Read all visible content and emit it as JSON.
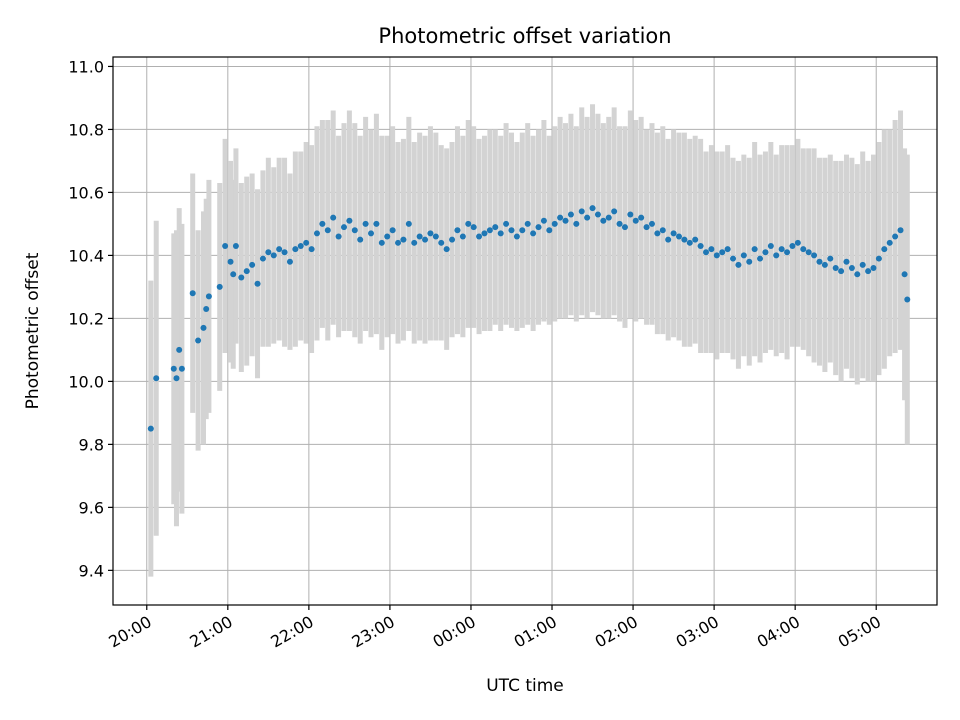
{
  "chart_data": {
    "type": "scatter",
    "title": "Photometric offset variation",
    "xlabel": "UTC time",
    "ylabel": "Photometric offset",
    "grid": true,
    "xlim": [
      "19:35",
      "05:45"
    ],
    "ylim": [
      9.29,
      11.03
    ],
    "x_ticks": [
      "20:00",
      "21:00",
      "22:00",
      "23:00",
      "00:00",
      "01:00",
      "02:00",
      "03:00",
      "04:00",
      "05:00"
    ],
    "y_ticks": [
      "9.4",
      "9.6",
      "9.8",
      "10.0",
      "10.2",
      "10.4",
      "10.6",
      "10.8",
      "11.0"
    ],
    "colors": {
      "points": "#1f77b4",
      "error_bars": "#d3d3d3"
    },
    "series": [
      {
        "values_note": "",
        "x": [
          "20:03",
          "20:07",
          "20:20",
          "20:22",
          "20:24",
          "20:26",
          "20:34",
          "20:38",
          "20:42",
          "20:44",
          "20:46",
          "20:54",
          "20:58",
          "21:02",
          "21:04",
          "21:06",
          "21:10",
          "21:14",
          "21:18",
          "21:22",
          "21:26",
          "21:30",
          "21:34",
          "21:38",
          "21:42",
          "21:46",
          "21:50",
          "21:54",
          "21:58",
          "22:02",
          "22:06",
          "22:10",
          "22:14",
          "22:18",
          "22:22",
          "22:26",
          "22:30",
          "22:34",
          "22:38",
          "22:42",
          "22:46",
          "22:50",
          "22:54",
          "22:58",
          "23:02",
          "23:06",
          "23:10",
          "23:14",
          "23:18",
          "23:22",
          "23:26",
          "23:30",
          "23:34",
          "23:38",
          "23:42",
          "23:46",
          "23:50",
          "23:54",
          "23:58",
          "00:02",
          "00:06",
          "00:10",
          "00:14",
          "00:18",
          "00:22",
          "00:26",
          "00:30",
          "00:34",
          "00:38",
          "00:42",
          "00:46",
          "00:50",
          "00:54",
          "00:58",
          "01:02",
          "01:06",
          "01:10",
          "01:14",
          "01:18",
          "01:22",
          "01:26",
          "01:30",
          "01:34",
          "01:38",
          "01:42",
          "01:46",
          "01:50",
          "01:54",
          "01:58",
          "02:02",
          "02:06",
          "02:10",
          "02:14",
          "02:18",
          "02:22",
          "02:26",
          "02:30",
          "02:34",
          "02:38",
          "02:42",
          "02:46",
          "02:50",
          "02:54",
          "02:58",
          "03:02",
          "03:06",
          "03:10",
          "03:14",
          "03:18",
          "03:22",
          "03:26",
          "03:30",
          "03:34",
          "03:38",
          "03:42",
          "03:46",
          "03:50",
          "03:54",
          "03:58",
          "04:02",
          "04:06",
          "04:10",
          "04:14",
          "04:18",
          "04:22",
          "04:26",
          "04:30",
          "04:34",
          "04:38",
          "04:42",
          "04:46",
          "04:50",
          "04:54",
          "04:58",
          "05:02",
          "05:06",
          "05:10",
          "05:14",
          "05:18",
          "05:21",
          "05:23"
        ],
        "y": [
          9.85,
          10.01,
          10.04,
          10.01,
          10.1,
          10.04,
          10.28,
          10.13,
          10.17,
          10.23,
          10.27,
          10.3,
          10.43,
          10.38,
          10.34,
          10.43,
          10.33,
          10.35,
          10.37,
          10.31,
          10.39,
          10.41,
          10.4,
          10.42,
          10.41,
          10.38,
          10.42,
          10.43,
          10.44,
          10.42,
          10.47,
          10.5,
          10.48,
          10.52,
          10.46,
          10.49,
          10.51,
          10.48,
          10.45,
          10.5,
          10.47,
          10.5,
          10.44,
          10.46,
          10.48,
          10.44,
          10.45,
          10.5,
          10.44,
          10.46,
          10.45,
          10.47,
          10.46,
          10.44,
          10.42,
          10.45,
          10.48,
          10.46,
          10.5,
          10.49,
          10.46,
          10.47,
          10.48,
          10.49,
          10.47,
          10.5,
          10.48,
          10.46,
          10.48,
          10.5,
          10.47,
          10.49,
          10.51,
          10.48,
          10.5,
          10.52,
          10.51,
          10.53,
          10.5,
          10.54,
          10.52,
          10.55,
          10.53,
          10.51,
          10.52,
          10.54,
          10.5,
          10.49,
          10.53,
          10.51,
          10.52,
          10.49,
          10.5,
          10.47,
          10.48,
          10.45,
          10.47,
          10.46,
          10.45,
          10.44,
          10.45,
          10.43,
          10.41,
          10.42,
          10.4,
          10.41,
          10.42,
          10.39,
          10.37,
          10.4,
          10.38,
          10.42,
          10.39,
          10.41,
          10.43,
          10.4,
          10.42,
          10.41,
          10.43,
          10.44,
          10.42,
          10.41,
          10.4,
          10.38,
          10.37,
          10.39,
          10.36,
          10.35,
          10.38,
          10.36,
          10.34,
          10.37,
          10.35,
          10.36,
          10.39,
          10.42,
          10.44,
          10.46,
          10.48,
          10.34,
          10.26
        ],
        "err": [
          0.47,
          0.5,
          0.43,
          0.47,
          0.45,
          0.46,
          0.38,
          0.35,
          0.37,
          0.35,
          0.37,
          0.33,
          0.34,
          0.32,
          0.3,
          0.31,
          0.3,
          0.3,
          0.29,
          0.3,
          0.28,
          0.3,
          0.28,
          0.29,
          0.3,
          0.28,
          0.31,
          0.3,
          0.32,
          0.33,
          0.34,
          0.33,
          0.35,
          0.34,
          0.32,
          0.33,
          0.35,
          0.34,
          0.33,
          0.34,
          0.33,
          0.35,
          0.34,
          0.32,
          0.33,
          0.32,
          0.32,
          0.34,
          0.32,
          0.33,
          0.33,
          0.34,
          0.33,
          0.31,
          0.32,
          0.31,
          0.33,
          0.32,
          0.33,
          0.32,
          0.31,
          0.31,
          0.32,
          0.31,
          0.31,
          0.32,
          0.31,
          0.3,
          0.31,
          0.32,
          0.31,
          0.31,
          0.32,
          0.3,
          0.31,
          0.32,
          0.31,
          0.32,
          0.31,
          0.33,
          0.32,
          0.33,
          0.32,
          0.31,
          0.32,
          0.33,
          0.31,
          0.32,
          0.33,
          0.32,
          0.32,
          0.31,
          0.32,
          0.32,
          0.33,
          0.32,
          0.33,
          0.33,
          0.34,
          0.33,
          0.33,
          0.34,
          0.32,
          0.33,
          0.33,
          0.32,
          0.33,
          0.32,
          0.33,
          0.32,
          0.33,
          0.34,
          0.33,
          0.32,
          0.33,
          0.32,
          0.33,
          0.34,
          0.32,
          0.33,
          0.32,
          0.33,
          0.34,
          0.33,
          0.34,
          0.33,
          0.34,
          0.35,
          0.34,
          0.35,
          0.35,
          0.36,
          0.35,
          0.36,
          0.37,
          0.38,
          0.36,
          0.37,
          0.38,
          0.4,
          0.46
        ]
      }
    ]
  }
}
